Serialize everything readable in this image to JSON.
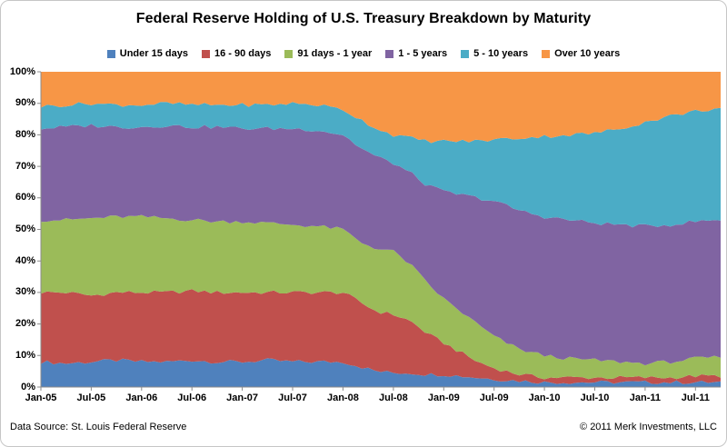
{
  "title": "Federal Reserve Holding of U.S. Treasury Breakdown by Maturity",
  "footer": {
    "left": "Data Source: St. Louis Federal Reserve",
    "right": "© 2011 Merk Investments, LLC"
  },
  "chart_data": {
    "type": "area",
    "stacked": true,
    "title": "Federal Reserve Holding of U.S. Treasury Breakdown by Maturity",
    "xlabel": "",
    "ylabel": "",
    "ylim": [
      0,
      100
    ],
    "y_ticks": [
      "0%",
      "10%",
      "20%",
      "30%",
      "40%",
      "50%",
      "60%",
      "70%",
      "80%",
      "90%",
      "100%"
    ],
    "legend_position": "top",
    "grid": false,
    "x_unit": "months since Jan-2005",
    "x": [
      0,
      3,
      6,
      9,
      12,
      15,
      18,
      21,
      24,
      27,
      30,
      33,
      36,
      38,
      40,
      42,
      44,
      46,
      48,
      50,
      52,
      54,
      57,
      60,
      63,
      66,
      69,
      72,
      75,
      78,
      81
    ],
    "x_tick_labels": [
      "Jan-05",
      "Jul-05",
      "Jan-06",
      "Jul-06",
      "Jan-07",
      "Jul-07",
      "Jan-08",
      "Jul-08",
      "Jan-09",
      "Jul-09",
      "Jan-10",
      "Jul-10",
      "Jan-11",
      "Jul-11"
    ],
    "x_tick_positions": [
      0,
      6,
      12,
      18,
      24,
      30,
      36,
      42,
      48,
      54,
      60,
      66,
      72,
      78
    ],
    "series": [
      {
        "name": "Under 15 days",
        "color": "#4f81bd",
        "values": [
          8,
          7.5,
          8,
          8.5,
          8,
          8,
          8.5,
          8,
          8,
          8.5,
          8,
          8,
          8,
          6.5,
          5,
          4.5,
          4.5,
          4,
          4,
          3.5,
          3,
          2.5,
          2,
          1.5,
          1.5,
          1.5,
          1.5,
          1.5,
          1.5,
          1.5,
          1.5
        ]
      },
      {
        "name": "16 - 90 days",
        "color": "#c0504d",
        "values": [
          22,
          22.5,
          21,
          21.5,
          22,
          22,
          22,
          22,
          22,
          21.5,
          22,
          22,
          22,
          20.5,
          19,
          18.5,
          16.5,
          13,
          10,
          7.5,
          5,
          3.5,
          2,
          1.5,
          1.5,
          1.5,
          1.5,
          1.5,
          1.5,
          2,
          2
        ]
      },
      {
        "name": "91 days - 1 year",
        "color": "#9bbb59",
        "values": [
          23,
          23,
          24.5,
          24,
          24,
          23.5,
          22.5,
          22.5,
          22.5,
          22,
          21.5,
          21,
          20,
          19,
          20,
          20,
          18,
          16,
          14,
          13,
          12,
          10,
          8,
          7,
          6,
          5.5,
          5,
          4.5,
          5,
          5.5,
          6
        ]
      },
      {
        "name": "1 - 5 years",
        "color": "#8064a2",
        "values": [
          29,
          29.5,
          29.5,
          28.5,
          28.5,
          29.5,
          29.5,
          30,
          29.5,
          30,
          30.5,
          30.5,
          30,
          30,
          29,
          28,
          29,
          31,
          34,
          37,
          40,
          43,
          44,
          44,
          44,
          43.5,
          43.5,
          43.5,
          43.5,
          43.5,
          43.5
        ]
      },
      {
        "name": "5 - 10 years",
        "color": "#4bacc6",
        "values": [
          7,
          7,
          7,
          7,
          7,
          7,
          7,
          7,
          7.5,
          7.5,
          8,
          8,
          8,
          9,
          9,
          9,
          11,
          14,
          16,
          17,
          18,
          19.5,
          23,
          25.5,
          27,
          28.5,
          30.5,
          33,
          34.5,
          35,
          35.5
        ]
      },
      {
        "name": "Over 10 years",
        "color": "#f79646",
        "values": [
          11,
          10.5,
          10,
          10.5,
          10.5,
          10,
          10.5,
          10.5,
          10.5,
          10.5,
          10,
          10.5,
          12,
          15,
          18,
          20,
          21,
          22,
          22,
          22,
          22,
          21.5,
          21,
          20.5,
          20,
          19.5,
          18,
          16,
          14,
          12.5,
          11.5
        ]
      }
    ]
  }
}
